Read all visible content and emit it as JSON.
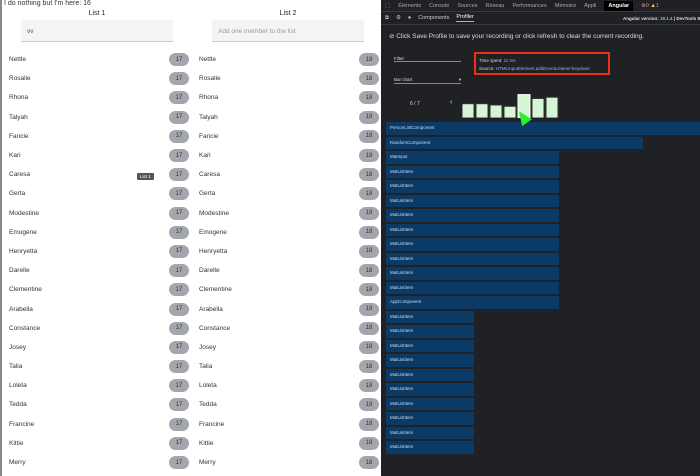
{
  "app": {
    "top_text": "I do nothing but I'm here: 16",
    "tooltip": "List 1",
    "list1": {
      "title": "List 1",
      "input_value": "vv",
      "badge": "17"
    },
    "list2": {
      "title": "List 2",
      "placeholder": "Add one member to the list",
      "badge": "18"
    },
    "names": [
      "Nettle",
      "Rosalie",
      "Rhona",
      "Talyah",
      "Fancie",
      "Kari",
      "Caresa",
      "Gerta",
      "Modestine",
      "Emogene",
      "Henryetta",
      "Darelle",
      "Clementine",
      "Arabella",
      "Constance",
      "Josey",
      "Talia",
      "Loleta",
      "Tedda",
      "Francine",
      "Kittie",
      "Merry"
    ]
  },
  "devtools": {
    "tabs": [
      "Éléments",
      "Console",
      "Sources",
      "Réseau",
      "Performances",
      "Mémoire",
      "Appli",
      "Angular"
    ],
    "active_tab": "Angular",
    "errors": "0",
    "warnings": "1",
    "subtabs": [
      "Components",
      "Profiler"
    ],
    "active_subtab": "Profiler",
    "version_label": "Angular version:",
    "version": "18.1.4",
    "devtools_label": "| DevTools 8",
    "message": "Click Save Profile to save your recording or click refresh to clear the current recording.",
    "filter_label": "Filter",
    "chart_select": "Bar chart",
    "time_label": "Time spent:",
    "time_value": "11 ms",
    "source_label": "Source:",
    "source_value": "HTMLInputElement.addEventListener:keydown",
    "page": "6 / 7",
    "frame_bars": [
      0.55,
      0.55,
      0.5,
      0.45,
      0.9,
      0.75,
      0.8
    ],
    "selected_frame": 5,
    "flame": [
      {
        "name": "PersonListComponent",
        "size": 1.0
      },
      {
        "name": "RandomComponent",
        "size": 0.82
      },
      {
        "name": "MatInput",
        "size": 0.55
      },
      {
        "name": "MatListItem",
        "size": 0.55
      },
      {
        "name": "MatListItem",
        "size": 0.55
      },
      {
        "name": "MatListItem",
        "size": 0.55
      },
      {
        "name": "MatListItem",
        "size": 0.55
      },
      {
        "name": "MatListItem",
        "size": 0.55
      },
      {
        "name": "MatListItem",
        "size": 0.55
      },
      {
        "name": "MatListItem",
        "size": 0.55
      },
      {
        "name": "MatListItem",
        "size": 0.55
      },
      {
        "name": "MatListItem",
        "size": 0.55
      },
      {
        "name": "AppComponent",
        "size": 0.55
      },
      {
        "name": "MatListItem",
        "size": 0.28
      },
      {
        "name": "MatListItem",
        "size": 0.28
      },
      {
        "name": "MatListItem",
        "size": 0.28
      },
      {
        "name": "MatListItem",
        "size": 0.28
      },
      {
        "name": "MatListItem",
        "size": 0.28
      },
      {
        "name": "MatListItem",
        "size": 0.28
      },
      {
        "name": "MatListItem",
        "size": 0.28
      },
      {
        "name": "MatListItem",
        "size": 0.28
      },
      {
        "name": "MatListItem",
        "size": 0.28
      },
      {
        "name": "MatListItem",
        "size": 0.28
      }
    ]
  }
}
